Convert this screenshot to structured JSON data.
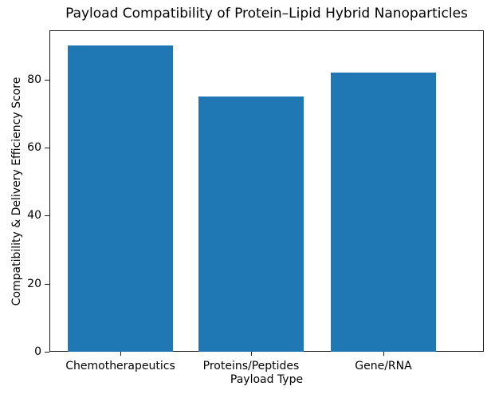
{
  "chart_data": {
    "type": "bar",
    "title": "Payload Compatibility of Protein–Lipid Hybrid Nanoparticles",
    "categories": [
      "Chemotherapeutics",
      "Proteins/Peptides",
      "Gene/RNA"
    ],
    "values": [
      90,
      75,
      82
    ],
    "xlabel": "Payload Type",
    "ylabel": "Compatibility & Delivery Efficiency Score",
    "ylim": [
      0,
      94.5
    ],
    "yticks": [
      0,
      20,
      40,
      60,
      80
    ],
    "bar_color": "#1f77b4",
    "axis_color": "#1a1a1a",
    "grid": false,
    "legend": null
  }
}
